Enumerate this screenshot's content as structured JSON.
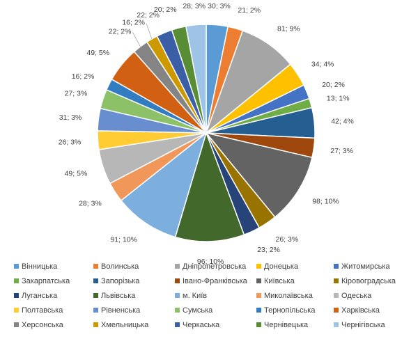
{
  "chart_data": {
    "type": "pie",
    "title": "",
    "categories": [
      "Вінницька",
      "Волинська",
      "Дніпропетровська",
      "Донецька",
      "Житомирська",
      "Закарпатська",
      "Запорізька",
      "Івано-Франківська",
      "Київська",
      "Кіровоградська",
      "Луганська",
      "Львівська",
      "м. Київ",
      "Миколаївська",
      "Одеська",
      "Полтавська",
      "Рівненська",
      "Сумська",
      "Тернопільська",
      "Харківська",
      "Херсонська",
      "Хмельницька",
      "Черкаська",
      "Чернівецька",
      "Чернігівська"
    ],
    "values": [
      30,
      21,
      81,
      34,
      20,
      13,
      42,
      27,
      98,
      26,
      23,
      96,
      91,
      28,
      49,
      26,
      31,
      27,
      16,
      49,
      22,
      16,
      22,
      20,
      28
    ],
    "data_labels": [
      "30; 3%",
      "21; 2%",
      "81; 9%",
      "34; 4%",
      "20; 2%",
      "13; 1%",
      "42; 4%",
      "27; 3%",
      "98; 10%",
      "26; 3%",
      "23; 2%",
      "96; 10%",
      "91; 10%",
      "28; 3%",
      "49; 5%",
      "26; 3%",
      "31; 3%",
      "27; 3%",
      "16; 2%",
      "49; 5%",
      "22; 2%",
      "16; 2%",
      "22; 2%",
      "20; 2%",
      "28; 3%"
    ],
    "colors": [
      "#5B9BD5",
      "#ED7D31",
      "#A5A5A5",
      "#FFC000",
      "#4472C4",
      "#70AD47",
      "#255E91",
      "#9E480E",
      "#636363",
      "#997300",
      "#264478",
      "#43682B",
      "#7CAFDD",
      "#F1975A",
      "#B7B7B7",
      "#FFCD33",
      "#698ED0",
      "#8CC168",
      "#327DC2",
      "#D26012",
      "#848484",
      "#CC9A00",
      "#3A5FA7",
      "#588D35",
      "#9DC3E6"
    ],
    "legend_position": "bottom"
  }
}
